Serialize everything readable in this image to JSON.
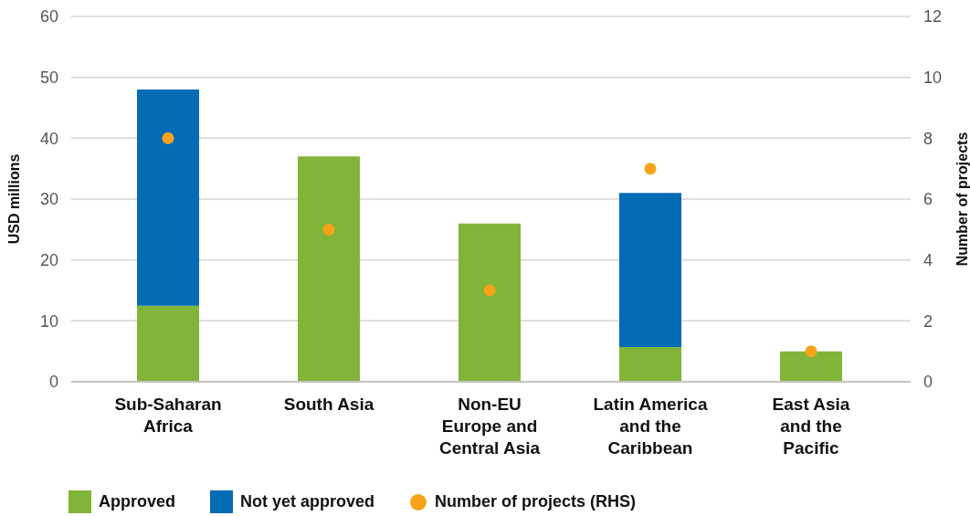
{
  "chart_data": {
    "type": "bar",
    "stacked": true,
    "categories": [
      "Sub-Saharan\nAfrica",
      "South Asia",
      "Non-EU\nEurope and\nCentral Asia",
      "Latin America\nand the\nCaribbean",
      "East Asia\nand the\nPacific"
    ],
    "series": [
      {
        "name": "Approved",
        "color": "#82b43a",
        "values": [
          12.5,
          37,
          26,
          5.7,
          5
        ]
      },
      {
        "name": "Not yet approved",
        "color": "#046bb5",
        "values": [
          35.5,
          null,
          null,
          25.3,
          null
        ]
      },
      {
        "name": "Number of projects (RHS)",
        "type": "scatter",
        "axis": "y2",
        "color": "#f7a21b",
        "values": [
          8,
          5,
          3,
          7,
          1
        ]
      }
    ],
    "ylabel": "USD millions",
    "y2label": "Number of projects",
    "ylim": [
      0,
      60
    ],
    "yticks": [
      0,
      10,
      20,
      30,
      40,
      50,
      60
    ],
    "y2lim": [
      0,
      12
    ],
    "y2ticks": [
      0,
      2,
      4,
      6,
      8,
      10,
      12
    ],
    "grid": "y",
    "legend": "bottom",
    "marker": "circle"
  }
}
